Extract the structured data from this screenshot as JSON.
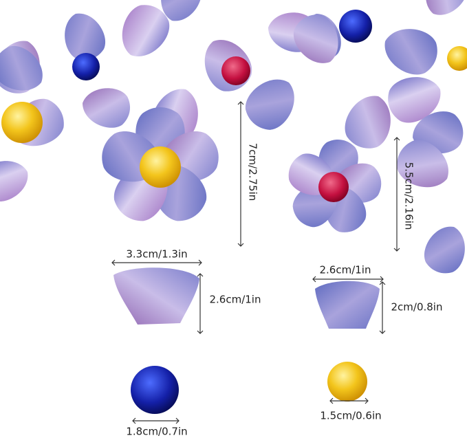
{
  "dimensions": [
    {
      "text": "7cm/2.75in"
    },
    {
      "text": "5.5cm/2.16in"
    },
    {
      "text": "3.3cm/1.3in"
    },
    {
      "text": "2.6cm/1in"
    },
    {
      "text": "2.6cm/1in"
    },
    {
      "text": "2cm/0.8in"
    },
    {
      "text": "1.8cm/0.7in"
    },
    {
      "text": "1.5cm/0.6in"
    }
  ]
}
